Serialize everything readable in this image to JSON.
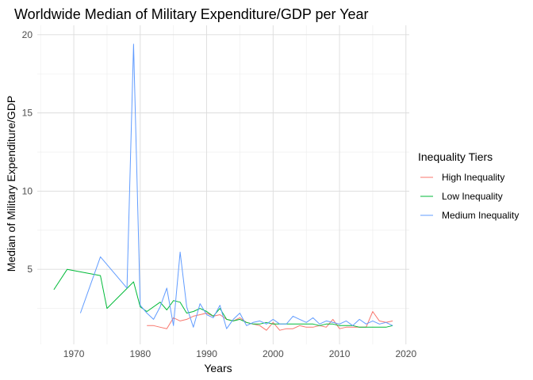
{
  "chart_data": {
    "type": "line",
    "title": "Worldwide Median of Military Expenditure/GDP per Year",
    "xlabel": "Years",
    "ylabel": "Median of Military Expenditure/GDP",
    "xlim": [
      1964.5,
      2020.5
    ],
    "ylim": [
      0.2,
      20.6
    ],
    "x_ticks": [
      1970,
      1980,
      1990,
      2000,
      2010,
      2020
    ],
    "y_ticks": [
      5,
      10,
      15,
      20
    ],
    "x_minor_ticks": [
      1965,
      1975,
      1985,
      1995,
      2005,
      2015
    ],
    "y_minor_ticks": [
      2.5,
      7.5,
      12.5,
      17.5
    ],
    "grid": true,
    "legend": {
      "title": "Inequality Tiers",
      "position": "right"
    },
    "series": [
      {
        "name": "High Inequality",
        "color": "#F8766D",
        "x": [
          1981,
          1982,
          1983,
          1984,
          1985,
          1986,
          1987,
          1988,
          1989,
          1990,
          1991,
          1992,
          1993,
          1994,
          1995,
          1996,
          1997,
          1998,
          1999,
          2000,
          2001,
          2002,
          2003,
          2004,
          2005,
          2006,
          2007,
          2008,
          2009,
          2010,
          2011,
          2012,
          2013,
          2014,
          2015,
          2016,
          2017,
          2018
        ],
        "values": [
          1.4,
          1.4,
          1.3,
          1.2,
          1.9,
          1.7,
          1.8,
          2.0,
          2.1,
          2.2,
          2.0,
          2.1,
          1.8,
          1.7,
          1.9,
          1.6,
          1.5,
          1.4,
          1.1,
          1.6,
          1.1,
          1.2,
          1.2,
          1.4,
          1.3,
          1.3,
          1.4,
          1.3,
          1.8,
          1.2,
          1.3,
          1.3,
          1.3,
          1.3,
          2.3,
          1.7,
          1.6,
          1.7
        ]
      },
      {
        "name": "Low Inequality",
        "color": "#00BA38",
        "x": [
          1967,
          1969,
          1974,
          1975,
          1979,
          1980,
          1981,
          1983,
          1984,
          1985,
          1986,
          1987,
          1988,
          1989,
          1990,
          1991,
          1992,
          1993,
          1994,
          1995,
          1996,
          1997,
          1998,
          1999,
          2000,
          2001,
          2002,
          2003,
          2004,
          2005,
          2006,
          2007,
          2008,
          2009,
          2010,
          2011,
          2012,
          2013,
          2014,
          2015,
          2016,
          2017,
          2018
        ],
        "values": [
          3.7,
          5.0,
          4.6,
          2.5,
          4.2,
          2.6,
          2.3,
          2.9,
          2.4,
          3.0,
          2.9,
          2.2,
          2.3,
          2.5,
          2.3,
          2.0,
          2.5,
          1.8,
          1.7,
          1.8,
          1.6,
          1.5,
          1.5,
          1.6,
          1.5,
          1.5,
          1.5,
          1.5,
          1.5,
          1.5,
          1.5,
          1.4,
          1.5,
          1.5,
          1.4,
          1.4,
          1.4,
          1.3,
          1.3,
          1.3,
          1.3,
          1.3,
          1.4
        ]
      },
      {
        "name": "Medium Inequality",
        "color": "#619CFF",
        "x": [
          1971,
          1974,
          1978,
          1979,
          1980,
          1981,
          1982,
          1983,
          1984,
          1985,
          1986,
          1987,
          1988,
          1989,
          1990,
          1991,
          1992,
          1993,
          1994,
          1995,
          1996,
          1997,
          1998,
          1999,
          2000,
          2001,
          2002,
          2003,
          2004,
          2005,
          2006,
          2007,
          2008,
          2009,
          2010,
          2011,
          2012,
          2013,
          2014,
          2015,
          2016,
          2017,
          2018
        ],
        "values": [
          2.2,
          5.8,
          3.8,
          19.4,
          2.7,
          2.2,
          1.8,
          2.6,
          3.8,
          1.4,
          6.1,
          2.6,
          1.3,
          2.8,
          2.1,
          1.9,
          2.7,
          1.2,
          1.8,
          2.2,
          1.4,
          1.6,
          1.7,
          1.5,
          1.8,
          1.5,
          1.5,
          2.0,
          1.8,
          1.6,
          1.9,
          1.5,
          1.7,
          1.6,
          1.5,
          1.7,
          1.4,
          1.8,
          1.5,
          1.7,
          1.5,
          1.6,
          1.4
        ]
      }
    ]
  }
}
